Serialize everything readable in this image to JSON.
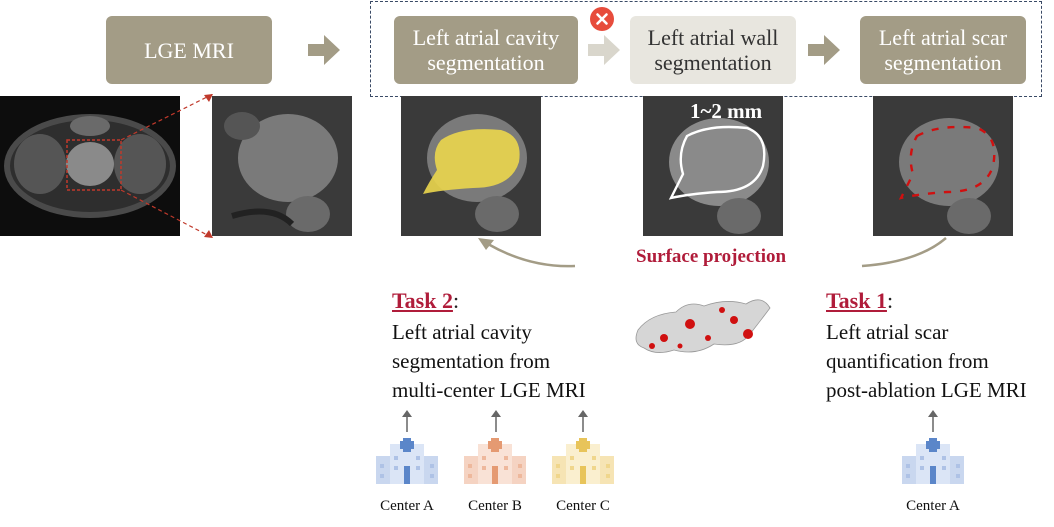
{
  "steps": {
    "lge_mri": "LGE MRI",
    "cavity_seg": "Left atrial cavity segmentation",
    "wall_seg": "Left atrial wall segmentation",
    "scar_seg": "Left atrial scar segmentation"
  },
  "wall_thickness": "1~2 mm",
  "surface_projection": "Surface projection",
  "task2": {
    "name": "Task 2",
    "colon": ":",
    "lines": [
      "Left atrial cavity",
      "segmentation from",
      "multi-center LGE MRI"
    ]
  },
  "task1": {
    "name": "Task 1",
    "colon": ":",
    "lines": [
      "Left atrial scar",
      "quantification from",
      "post-ablation LGE MRI"
    ]
  },
  "centers": [
    "Center A",
    "Center B",
    "Center C",
    "Center A"
  ],
  "colors": {
    "step_dark": "#a39c86",
    "step_light": "#e8e6df",
    "accent_red": "#b01c3a",
    "cavity_fill": "#e8d44d",
    "center_blue": "#5b86c9",
    "center_orange": "#e59a72",
    "center_yellow": "#e8c45a"
  },
  "icons": [
    "arrow-right-icon",
    "error-x-icon",
    "curved-arrow-icon",
    "hospital-building-icon",
    "up-arrow-icon"
  ]
}
